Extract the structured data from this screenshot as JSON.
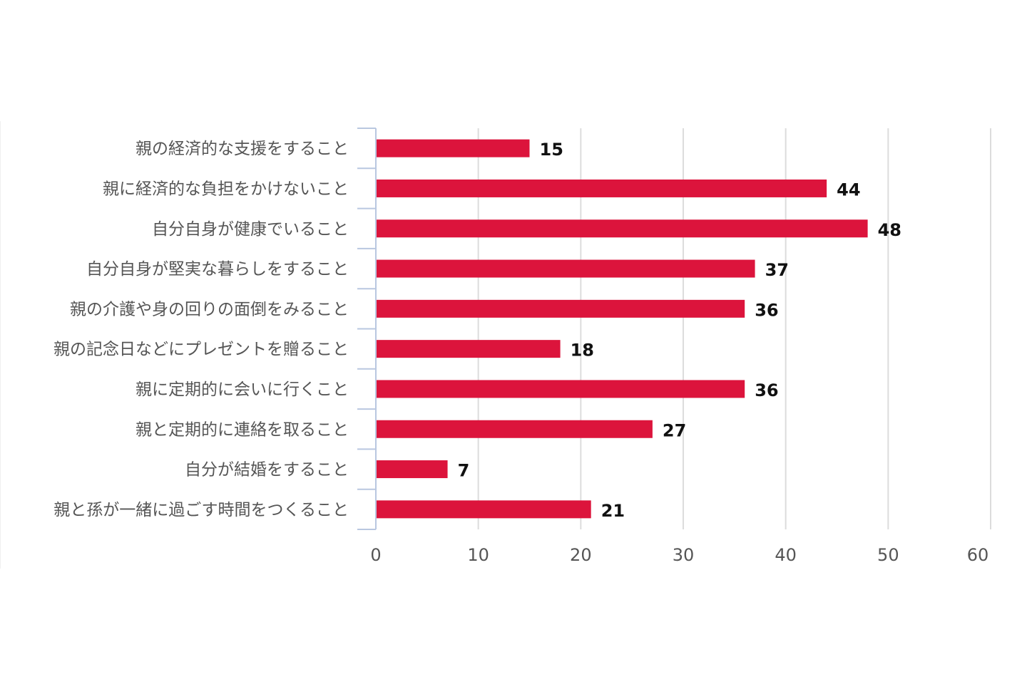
{
  "chart_data": {
    "type": "bar",
    "orientation": "horizontal",
    "categories": [
      "親の経済的な支援をすること",
      "親に経済的な負担をかけないこと",
      "自分自身が健康でいること",
      "自分自身が堅実な暮らしをすること",
      "親の介護や身の回りの面倒をみること",
      "親の記念日などにプレゼントを贈ること",
      "親に定期的に会いに行くこと",
      "親と定期的に連絡を取ること",
      "自分が結婚をすること",
      "親と孫が一緒に過ごす時間をつくること"
    ],
    "values": [
      15,
      44,
      48,
      37,
      36,
      18,
      36,
      27,
      7,
      21
    ],
    "xlim": [
      0,
      60
    ],
    "x_ticks": [
      0,
      10,
      20,
      30,
      40,
      50,
      60
    ],
    "title": "",
    "xlabel": "",
    "ylabel": "",
    "grid": true,
    "legend": "none",
    "bar_color": "#dc143c",
    "data_labels": true
  }
}
